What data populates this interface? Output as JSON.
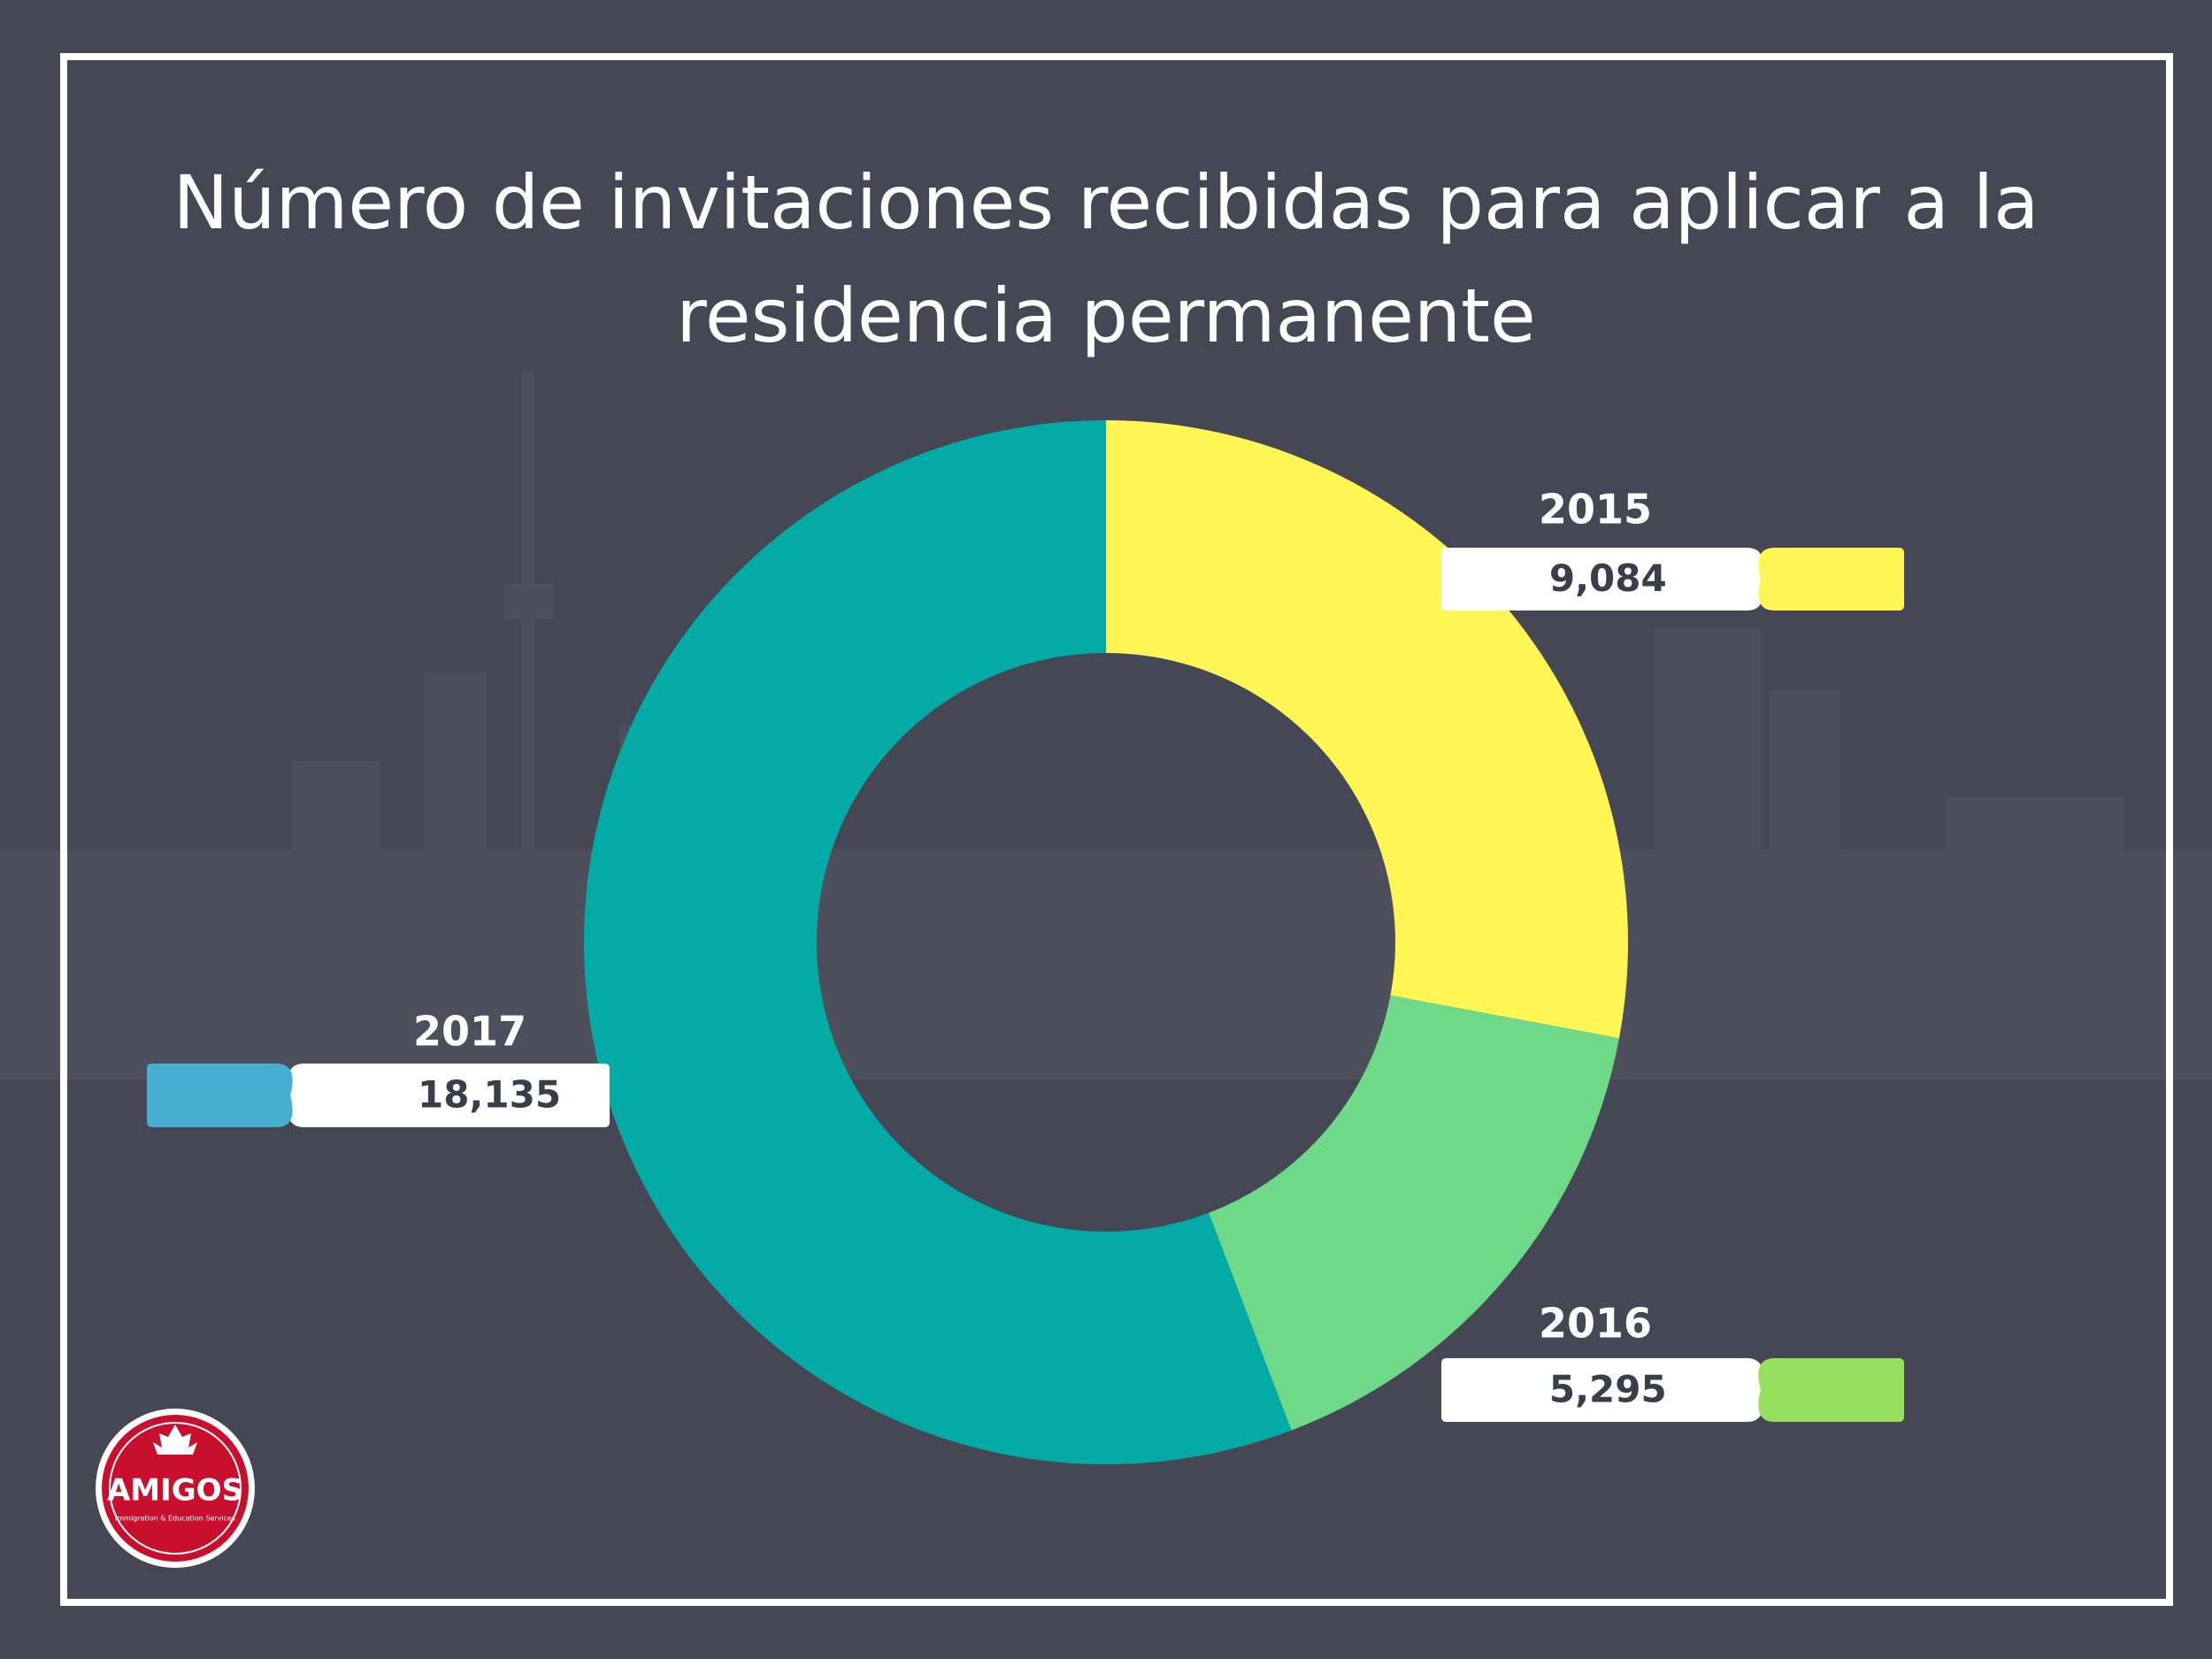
{
  "chart_data": {
    "type": "donut",
    "title": "Número de invitaciones recibidas para aplicar a la residencia permanente",
    "categories": [
      "2015",
      "2016",
      "2017"
    ],
    "values": [
      9084,
      5295,
      18135
    ],
    "value_labels": [
      "9,084",
      "5,295",
      "18,135"
    ],
    "colors": [
      "#fff655",
      "#6fd98a",
      "#03aaa6"
    ],
    "label_colors": [
      "#fff655",
      "#97e05f",
      "#46afd1"
    ]
  },
  "logo": {
    "name": "AMIGOS",
    "tagline": "Immigration & Education Services"
  }
}
